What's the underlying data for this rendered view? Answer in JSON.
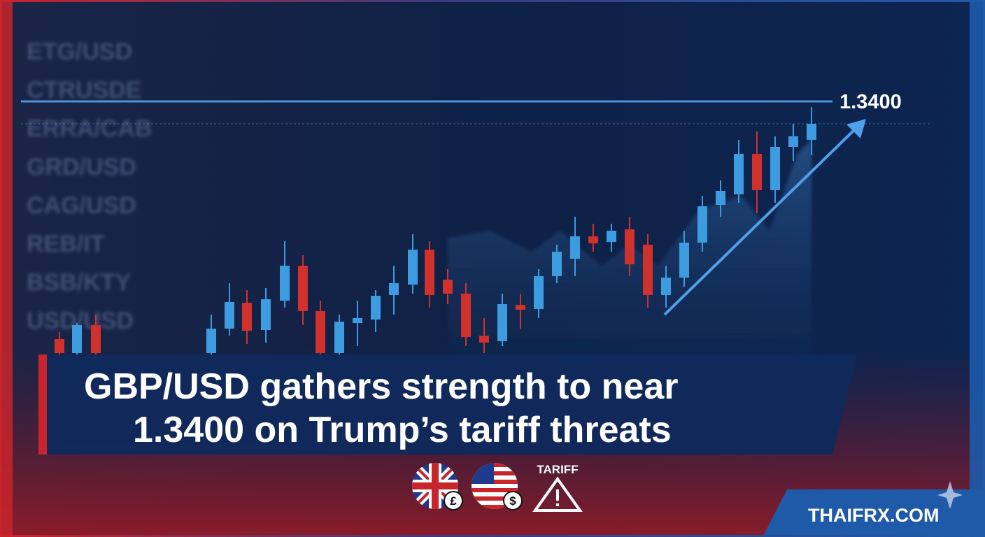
{
  "background_tickers": [
    "ETG/USD",
    "CTRUSDE",
    "ERRA/CAB",
    "GRD/USD",
    "CAG/USD",
    "REB/IT",
    "BSB/KTY",
    "USD/USD"
  ],
  "level_label": "1.3400",
  "headline": {
    "lines": [
      "GBP/USD gathers strength to near",
      "1.3400 on Trump’s tariff threats"
    ]
  },
  "icons": {
    "tariff_label": "TARIFF"
  },
  "brand": "THAIFRX.COM"
}
